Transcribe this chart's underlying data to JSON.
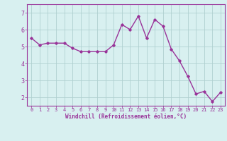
{
  "x": [
    0,
    1,
    2,
    3,
    4,
    5,
    6,
    7,
    8,
    9,
    10,
    11,
    12,
    13,
    14,
    15,
    16,
    17,
    18,
    19,
    20,
    21,
    22,
    23
  ],
  "y": [
    5.5,
    5.1,
    5.2,
    5.2,
    5.2,
    4.9,
    4.7,
    4.7,
    4.7,
    4.7,
    5.1,
    6.3,
    6.0,
    6.8,
    5.5,
    6.6,
    6.2,
    4.85,
    4.15,
    3.25,
    2.2,
    2.35,
    1.75,
    2.3
  ],
  "line_color": "#993399",
  "marker": "D",
  "marker_size": 1.8,
  "line_width": 1.0,
  "bg_color": "#d8f0f0",
  "grid_color": "#b0d0d0",
  "xlabel": "Windchill (Refroidissement éolien,°C)",
  "xlabel_color": "#993399",
  "tick_color": "#993399",
  "ylabel_ticks": [
    2,
    3,
    4,
    5,
    6,
    7
  ],
  "ylim": [
    1.5,
    7.5
  ],
  "xlim": [
    -0.5,
    23.5
  ],
  "xtick_labels": [
    "0",
    "1",
    "2",
    "3",
    "4",
    "5",
    "6",
    "7",
    "8",
    "9",
    "10",
    "11",
    "12",
    "13",
    "14",
    "15",
    "16",
    "17",
    "18",
    "19",
    "20",
    "21",
    "22",
    "23"
  ]
}
